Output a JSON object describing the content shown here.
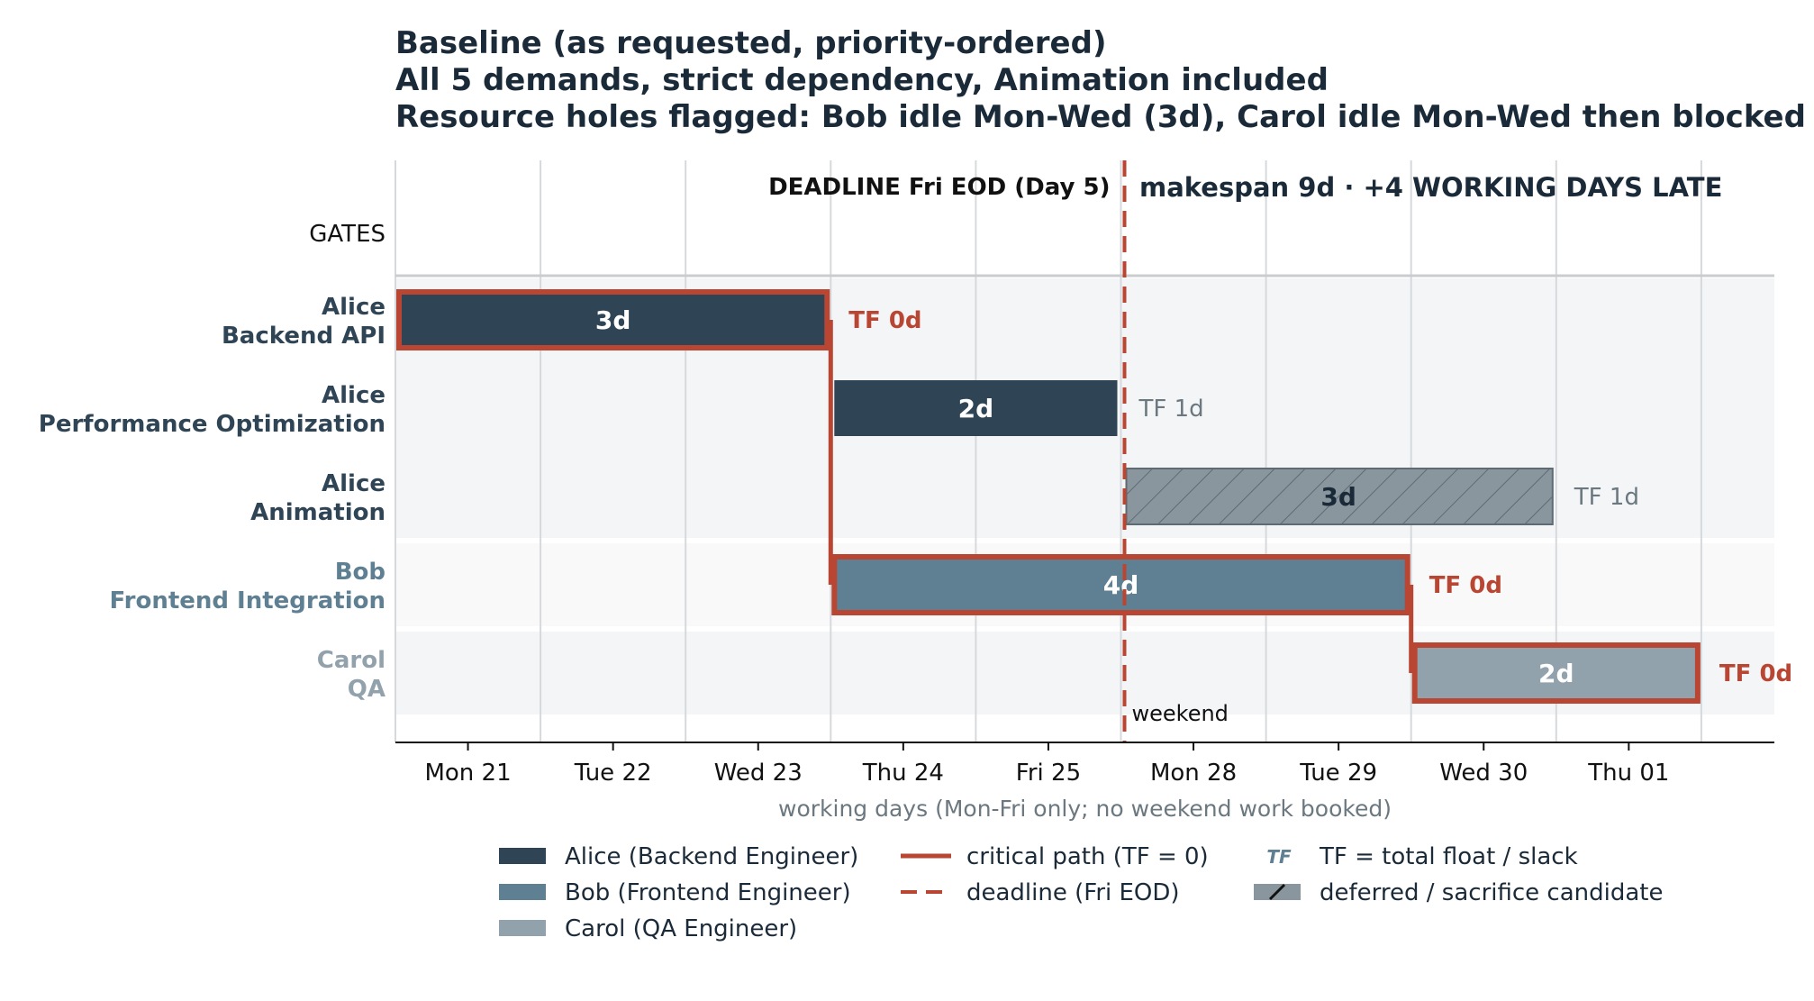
{
  "titles": [
    "Baseline (as requested, priority-ordered)",
    "All 5 demands, strict dependency, Animation included",
    "Resource holes flagged: Bob idle Mon-Wed (3d), Carol idle Mon-Wed then blocked"
  ],
  "chart_data": {
    "type": "gantt",
    "x_ticks": [
      "Mon 21",
      "Tue 22",
      "Wed 23",
      "Thu 24",
      "Fri 25",
      "Mon 28",
      "Tue 29",
      "Wed 30",
      "Thu 01"
    ],
    "x_range_days": [
      0,
      9.5
    ],
    "xlabel": "working days (Mon-Fri only; no weekend work booked)",
    "gates_label": "GATES",
    "weekend_label": "weekend",
    "weekend_after_day": 5,
    "deadline": {
      "day": 5,
      "label": "DEADLINE  Fri EOD (Day 5)"
    },
    "makespan_note": "makespan 9d  ·  +4 WORKING DAYS LATE",
    "rows": [
      {
        "person": "Alice",
        "task": "Backend API"
      },
      {
        "person": "Alice",
        "task": "Performance Optimization"
      },
      {
        "person": "Alice",
        "task": "Animation"
      },
      {
        "person": "Bob",
        "task": "Frontend Integration"
      },
      {
        "person": "Carol",
        "task": "QA"
      }
    ],
    "tasks": [
      {
        "row": 0,
        "start": 0,
        "duration": 3,
        "label": "3d",
        "resource": "alice",
        "critical": true,
        "deferred": false,
        "tf": "TF 0d"
      },
      {
        "row": 1,
        "start": 3,
        "duration": 2,
        "label": "2d",
        "resource": "alice",
        "critical": false,
        "deferred": false,
        "tf": "TF 1d"
      },
      {
        "row": 2,
        "start": 5,
        "duration": 3,
        "label": "3d",
        "resource": "alice",
        "critical": false,
        "deferred": true,
        "tf": "TF 1d"
      },
      {
        "row": 3,
        "start": 3,
        "duration": 4,
        "label": "4d",
        "resource": "bob",
        "critical": true,
        "deferred": false,
        "tf": "TF 0d"
      },
      {
        "row": 4,
        "start": 7,
        "duration": 2,
        "label": "2d",
        "resource": "carol",
        "critical": true,
        "deferred": false,
        "tf": "TF 0d"
      }
    ],
    "critical_links": [
      {
        "day": 3,
        "from_row": 0,
        "to_row": 3
      },
      {
        "day": 7,
        "from_row": 3,
        "to_row": 4
      }
    ],
    "grid": true
  },
  "legend": {
    "items": [
      {
        "key": "alice",
        "kind": "patch",
        "label": "Alice (Backend Engineer)"
      },
      {
        "key": "bob",
        "kind": "patch",
        "label": "Bob (Frontend Engineer)"
      },
      {
        "key": "carol",
        "kind": "patch",
        "label": "Carol (QA Engineer)"
      },
      {
        "key": "critical",
        "kind": "line",
        "label": "critical path (TF = 0)"
      },
      {
        "key": "deadline",
        "kind": "dashed",
        "label": "deadline (Fri EOD)"
      },
      {
        "key": "tf",
        "kind": "glyph",
        "glyph": "TF",
        "label": "TF = total float / slack"
      },
      {
        "key": "deferred",
        "kind": "hatch",
        "label": "deferred / sacrifice candidate"
      }
    ]
  },
  "colors": {
    "alice": "#2f4556",
    "bob": "#5f7f93",
    "carol": "#92a2ac",
    "deferred": "#8a969e",
    "critical": "#b94632",
    "text_dark": "#1b2a38",
    "muted": "#6b7880",
    "band": "#f4f5f7",
    "band_alt": "#f9f9fa",
    "grid": "#d6d9dc"
  }
}
